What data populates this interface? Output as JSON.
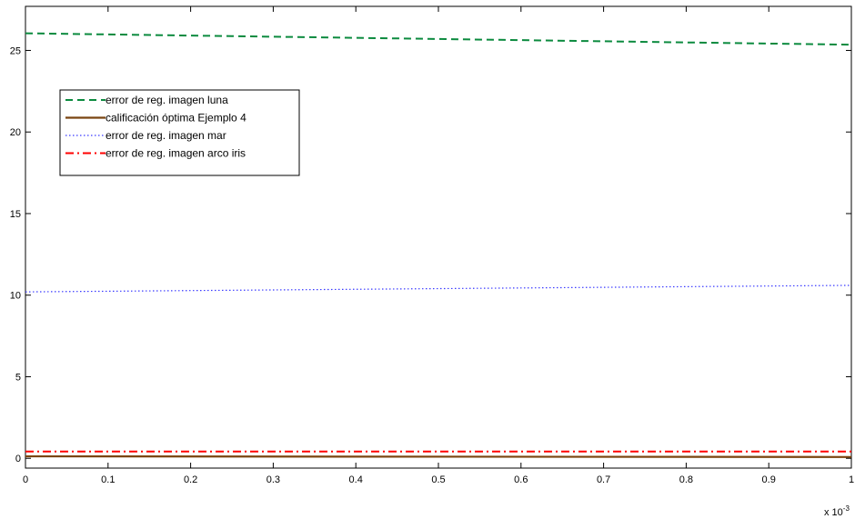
{
  "chart_data": {
    "type": "line",
    "title": "",
    "xlabel": "",
    "ylabel": "",
    "xlim": [
      0,
      1
    ],
    "ylim": [
      -0.6,
      27.7
    ],
    "x_multiplier": "x 10",
    "x_multiplier_exponent": "-3",
    "x_ticks": [
      "0",
      "0.1",
      "0.2",
      "0.3",
      "0.4",
      "0.5",
      "0.6",
      "0.7",
      "0.8",
      "0.9",
      "1"
    ],
    "y_ticks": [
      "0",
      "5",
      "10",
      "15",
      "20",
      "25"
    ],
    "grid": false,
    "legend_position": "top-left",
    "series": [
      {
        "name": "error de reg. imagen luna",
        "color": "#0b8a3e",
        "style": "dashed",
        "x": [
          0,
          1
        ],
        "y": [
          26.05,
          25.35
        ]
      },
      {
        "name": "calificación óptima Ejemplo 4",
        "color": "#7a4510",
        "style": "solid",
        "x": [
          0,
          1
        ],
        "y": [
          0.12,
          0.08
        ]
      },
      {
        "name": "error de reg. imagen mar",
        "color": "#3a3aff",
        "style": "dotted",
        "x": [
          0,
          1
        ],
        "y": [
          10.2,
          10.6
        ]
      },
      {
        "name": "error de reg. imagen arco iris",
        "color": "#ff0000",
        "style": "dashdot",
        "x": [
          0,
          1
        ],
        "y": [
          0.42,
          0.42
        ]
      }
    ]
  }
}
